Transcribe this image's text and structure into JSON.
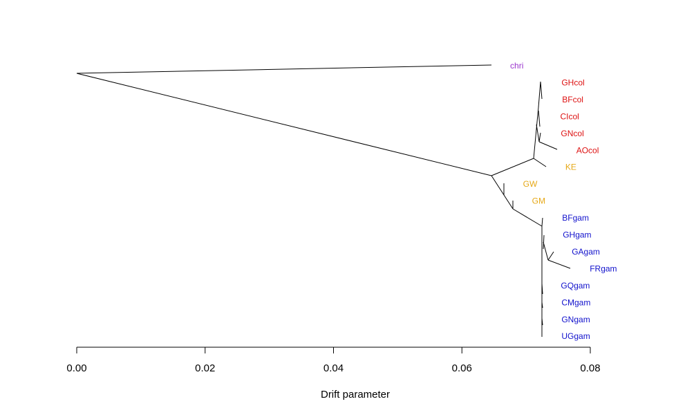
{
  "chart_data": {
    "type": "tree",
    "xlabel": "Drift parameter",
    "xlim": [
      0.0,
      0.08
    ],
    "ticks": [
      {
        "value": 0.0,
        "label": "0.00"
      },
      {
        "value": 0.02,
        "label": "0.02"
      },
      {
        "value": 0.04,
        "label": "0.04"
      },
      {
        "value": 0.06,
        "label": "0.06"
      },
      {
        "value": 0.08,
        "label": "0.08"
      }
    ],
    "colors": {
      "outgroup": "#9933cc",
      "coluzzii": "#dd1111",
      "intermediate": "#e6a817",
      "gambiae": "#1111cc"
    },
    "leaves": [
      {
        "name": "chri",
        "group": "outgroup",
        "drift": 0.0645
      },
      {
        "name": "GHcol",
        "group": "coluzzii",
        "drift": 0.0725
      },
      {
        "name": "BFcol",
        "group": "coluzzii",
        "drift": 0.0726
      },
      {
        "name": "CIcol",
        "group": "coluzzii",
        "drift": 0.0723
      },
      {
        "name": "GNcol",
        "group": "coluzzii",
        "drift": 0.0724
      },
      {
        "name": "AOcol",
        "group": "coluzzii",
        "drift": 0.0748
      },
      {
        "name": "KE",
        "group": "intermediate",
        "drift": 0.0731
      },
      {
        "name": "GW",
        "group": "intermediate",
        "drift": 0.0665
      },
      {
        "name": "GM",
        "group": "intermediate",
        "drift": 0.0679
      },
      {
        "name": "BFgam",
        "group": "gambiae",
        "drift": 0.0726
      },
      {
        "name": "GHgam",
        "group": "gambiae",
        "drift": 0.0727
      },
      {
        "name": "GAgam",
        "group": "gambiae",
        "drift": 0.0741
      },
      {
        "name": "FRgam",
        "group": "gambiae",
        "drift": 0.0769
      },
      {
        "name": "GQgam",
        "group": "gambiae",
        "drift": 0.0724
      },
      {
        "name": "CMgam",
        "group": "gambiae",
        "drift": 0.0725
      },
      {
        "name": "GNgam",
        "group": "gambiae",
        "drift": 0.0725
      },
      {
        "name": "UGgam",
        "group": "gambiae",
        "drift": 0.0725
      }
    ]
  }
}
